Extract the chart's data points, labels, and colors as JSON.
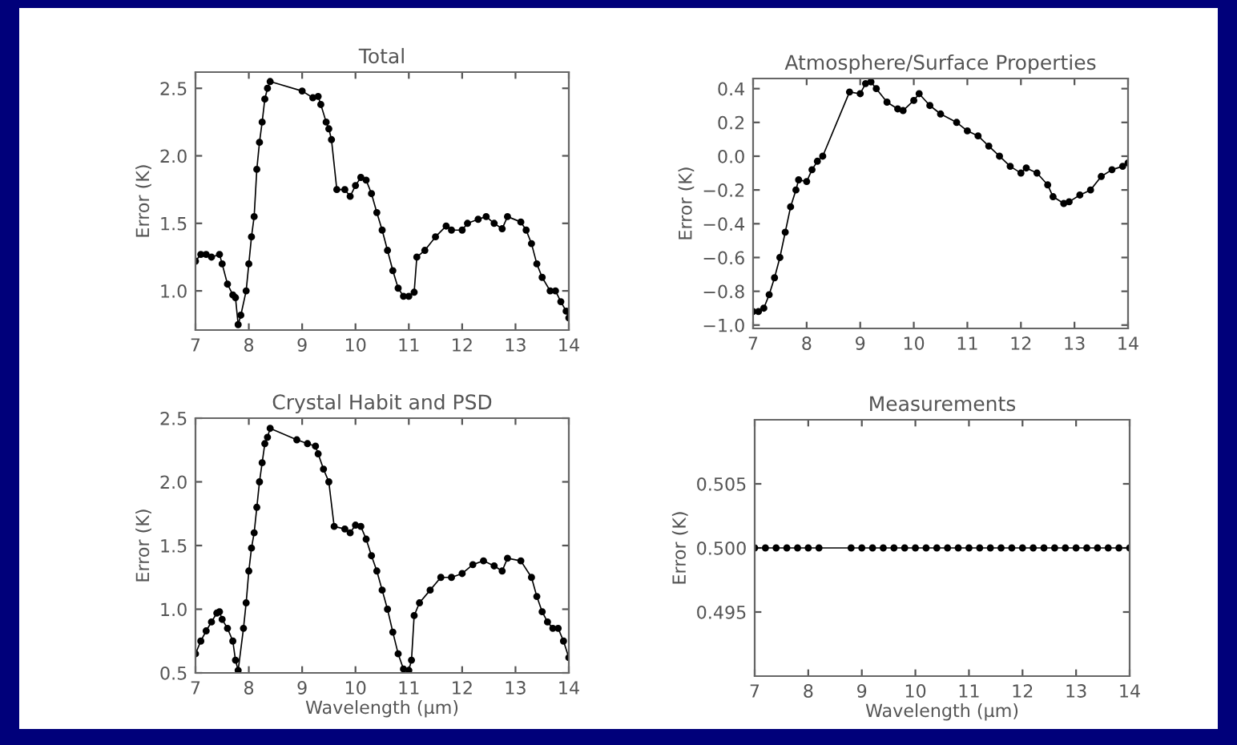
{
  "chart_data": [
    {
      "type": "line",
      "title": "Total",
      "ylabel": "Error (K)",
      "xlim": [
        7,
        14
      ],
      "ylim": [
        0.71,
        2.62
      ],
      "xticks": [
        7,
        8,
        9,
        10,
        11,
        12,
        13,
        14
      ],
      "yticks": [
        {
          "value": 1.0,
          "label": "1.0"
        },
        1.5,
        {
          "value": 2.0,
          "label": "2.0"
        },
        2.5
      ],
      "marker": "circle",
      "line_style": "solid",
      "grid": false,
      "series": [
        {
          "color": "#000000",
          "x": [
            7.0,
            7.1,
            7.2,
            7.3,
            7.45,
            7.5,
            7.6,
            7.7,
            7.75,
            7.8,
            7.85,
            7.95,
            8.0,
            8.05,
            8.1,
            8.15,
            8.2,
            8.25,
            8.3,
            8.35,
            8.4,
            9.0,
            9.2,
            9.3,
            9.35,
            9.45,
            9.5,
            9.55,
            9.65,
            9.8,
            9.9,
            10.0,
            10.1,
            10.2,
            10.3,
            10.4,
            10.5,
            10.6,
            10.7,
            10.8,
            10.9,
            11.0,
            11.1,
            11.15,
            11.3,
            11.5,
            11.7,
            11.8,
            12.0,
            12.1,
            12.3,
            12.45,
            12.6,
            12.75,
            12.85,
            13.1,
            13.2,
            13.3,
            13.4,
            13.5,
            13.65,
            13.75,
            13.85,
            13.95,
            14.0
          ],
          "values": [
            1.22,
            1.27,
            1.27,
            1.25,
            1.27,
            1.2,
            1.05,
            0.97,
            0.95,
            0.75,
            0.82,
            1.0,
            1.2,
            1.4,
            1.55,
            1.9,
            2.1,
            2.25,
            2.42,
            2.5,
            2.55,
            2.48,
            2.43,
            2.44,
            2.38,
            2.25,
            2.2,
            2.12,
            1.75,
            1.75,
            1.7,
            1.78,
            1.84,
            1.82,
            1.72,
            1.58,
            1.45,
            1.3,
            1.15,
            1.02,
            0.96,
            0.96,
            0.99,
            1.25,
            1.3,
            1.4,
            1.48,
            1.45,
            1.45,
            1.5,
            1.53,
            1.55,
            1.5,
            1.46,
            1.55,
            1.51,
            1.45,
            1.35,
            1.2,
            1.1,
            1.0,
            1.0,
            0.92,
            0.85,
            0.8
          ]
        }
      ]
    },
    {
      "type": "line",
      "title": "Atmosphere/Surface Properties",
      "ylabel": "Error (K)",
      "xlim": [
        7,
        14
      ],
      "ylim": [
        -1.02,
        0.46
      ],
      "xticks": [
        7,
        8,
        9,
        10,
        11,
        12,
        13,
        14
      ],
      "yticks": [
        {
          "value": -1.0,
          "label": "−1.0"
        },
        {
          "value": -0.8,
          "label": "−0.8"
        },
        {
          "value": -0.6,
          "label": "−0.6"
        },
        {
          "value": -0.4,
          "label": "−0.4"
        },
        {
          "value": -0.2,
          "label": "−0.2"
        },
        {
          "value": 0.0,
          "label": "0.0"
        },
        0.2,
        0.4
      ],
      "marker": "circle",
      "line_style": "solid",
      "grid": false,
      "series": [
        {
          "color": "#000000",
          "x": [
            7.0,
            7.1,
            7.2,
            7.3,
            7.4,
            7.5,
            7.6,
            7.7,
            7.8,
            7.85,
            8.0,
            8.1,
            8.2,
            8.3,
            8.8,
            9.0,
            9.1,
            9.2,
            9.3,
            9.5,
            9.7,
            9.8,
            10.0,
            10.1,
            10.3,
            10.5,
            10.8,
            11.0,
            11.2,
            11.4,
            11.6,
            11.8,
            12.0,
            12.1,
            12.3,
            12.5,
            12.6,
            12.8,
            12.9,
            13.1,
            13.3,
            13.5,
            13.7,
            13.9,
            14.0
          ],
          "values": [
            -0.92,
            -0.92,
            -0.9,
            -0.82,
            -0.72,
            -0.6,
            -0.45,
            -0.3,
            -0.2,
            -0.14,
            -0.15,
            -0.08,
            -0.03,
            0.0,
            0.38,
            0.37,
            0.43,
            0.44,
            0.4,
            0.32,
            0.28,
            0.27,
            0.33,
            0.37,
            0.3,
            0.25,
            0.2,
            0.15,
            0.12,
            0.06,
            0.0,
            -0.06,
            -0.1,
            -0.07,
            -0.1,
            -0.17,
            -0.24,
            -0.28,
            -0.27,
            -0.23,
            -0.2,
            -0.12,
            -0.08,
            -0.06,
            -0.04
          ]
        }
      ]
    },
    {
      "type": "line",
      "title": "Crystal Habit and PSD",
      "xlabel": "Wavelength (μm)",
      "ylabel": "Error (K)",
      "xlim": [
        7,
        14
      ],
      "ylim": [
        0.5,
        2.5
      ],
      "xticks": [
        7,
        8,
        9,
        10,
        11,
        12,
        13,
        14
      ],
      "yticks": [
        0.5,
        {
          "value": 1.0,
          "label": "1.0"
        },
        1.5,
        {
          "value": 2.0,
          "label": "2.0"
        },
        2.5
      ],
      "marker": "circle",
      "line_style": "solid",
      "grid": false,
      "series": [
        {
          "color": "#000000",
          "x": [
            7.0,
            7.1,
            7.2,
            7.3,
            7.4,
            7.45,
            7.5,
            7.6,
            7.7,
            7.75,
            7.8,
            7.9,
            7.95,
            8.0,
            8.05,
            8.1,
            8.15,
            8.2,
            8.25,
            8.3,
            8.35,
            8.4,
            8.9,
            9.1,
            9.25,
            9.3,
            9.4,
            9.5,
            9.6,
            9.8,
            9.9,
            10.0,
            10.1,
            10.2,
            10.3,
            10.4,
            10.5,
            10.6,
            10.7,
            10.8,
            10.9,
            11.0,
            11.05,
            11.1,
            11.2,
            11.4,
            11.6,
            11.8,
            12.0,
            12.2,
            12.4,
            12.6,
            12.75,
            12.85,
            13.1,
            13.3,
            13.4,
            13.5,
            13.6,
            13.7,
            13.8,
            13.9,
            14.0
          ],
          "values": [
            0.65,
            0.75,
            0.83,
            0.9,
            0.97,
            0.98,
            0.92,
            0.85,
            0.75,
            0.6,
            0.52,
            0.85,
            1.05,
            1.3,
            1.48,
            1.6,
            1.8,
            2.0,
            2.15,
            2.3,
            2.35,
            2.42,
            2.33,
            2.3,
            2.28,
            2.22,
            2.1,
            2.0,
            1.65,
            1.63,
            1.6,
            1.66,
            1.65,
            1.55,
            1.42,
            1.3,
            1.15,
            1.0,
            0.82,
            0.65,
            0.53,
            0.52,
            0.6,
            0.95,
            1.05,
            1.15,
            1.25,
            1.25,
            1.28,
            1.35,
            1.38,
            1.34,
            1.3,
            1.4,
            1.38,
            1.25,
            1.1,
            0.98,
            0.9,
            0.85,
            0.85,
            0.75,
            0.62
          ]
        }
      ]
    },
    {
      "type": "line",
      "title": "Measurements",
      "xlabel": "Wavelength (μm)",
      "ylabel": "Error (K)",
      "xlim": [
        7,
        14
      ],
      "ylim": [
        0.49,
        0.51
      ],
      "xticks": [
        7,
        8,
        9,
        10,
        11,
        12,
        13,
        14
      ],
      "yticks": [
        0.495,
        {
          "value": 0.5,
          "label": "0.500"
        },
        0.505
      ],
      "marker": "circle",
      "line_style": "solid",
      "grid": false,
      "series": [
        {
          "color": "#000000",
          "x": [
            7.0,
            7.2,
            7.4,
            7.6,
            7.8,
            8.0,
            8.2,
            8.8,
            9.0,
            9.2,
            9.4,
            9.6,
            9.8,
            10.0,
            10.2,
            10.4,
            10.6,
            10.8,
            11.0,
            11.2,
            11.4,
            11.6,
            11.8,
            12.0,
            12.2,
            12.4,
            12.6,
            12.8,
            13.0,
            13.2,
            13.4,
            13.6,
            13.8,
            14.0
          ],
          "values": [
            0.5,
            0.5,
            0.5,
            0.5,
            0.5,
            0.5,
            0.5,
            0.5,
            0.5,
            0.5,
            0.5,
            0.5,
            0.5,
            0.5,
            0.5,
            0.5,
            0.5,
            0.5,
            0.5,
            0.5,
            0.5,
            0.5,
            0.5,
            0.5,
            0.5,
            0.5,
            0.5,
            0.5,
            0.5,
            0.5,
            0.5,
            0.5,
            0.5,
            0.5
          ]
        }
      ]
    }
  ]
}
